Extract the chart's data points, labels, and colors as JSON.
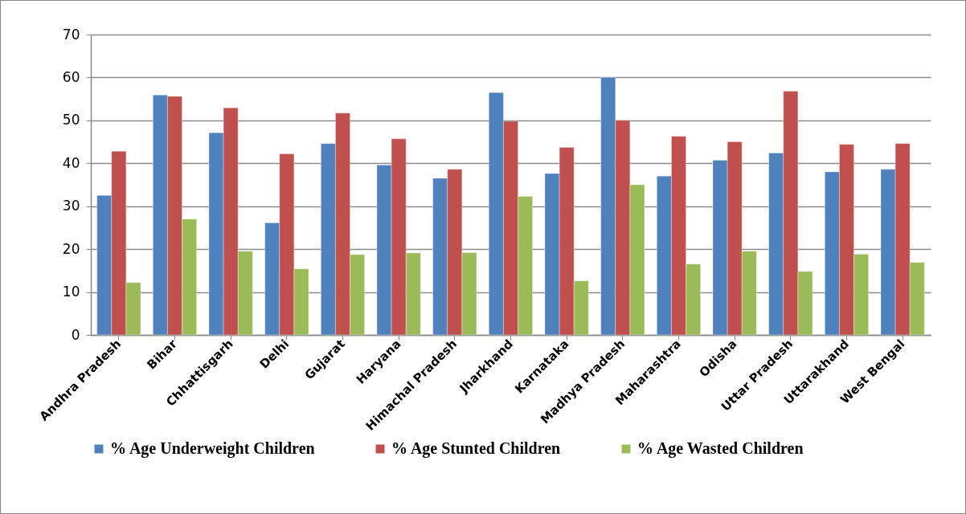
{
  "chart_data": {
    "type": "bar",
    "categories": [
      "Andhra Pradesh",
      "Bihar",
      "Chhattisgarh",
      "Delhi",
      "Gujarat",
      "Haryana",
      "Himachal Pradesh",
      "Jharkhand",
      "Karnataka",
      "Madhya Pradesh",
      "Maharashtra",
      "Odisha",
      "Uttar Pradesh",
      "Uttarakhand",
      "West Bengal"
    ],
    "series": [
      {
        "name": "% Age Underweight Children",
        "color": "#4f81bd",
        "values": [
          32.5,
          55.9,
          47.1,
          26.1,
          44.6,
          39.6,
          36.5,
          56.5,
          37.6,
          60.0,
          37.0,
          40.7,
          42.4,
          38.0,
          38.6
        ]
      },
      {
        "name": "% Age Stunted Children",
        "color": "#c0504d",
        "values": [
          42.8,
          55.6,
          52.9,
          42.2,
          51.7,
          45.7,
          38.6,
          49.8,
          43.7,
          50.0,
          46.3,
          45.0,
          56.8,
          44.4,
          44.6
        ]
      },
      {
        "name": "% Age Wasted Children",
        "color": "#9bbb59",
        "values": [
          12.2,
          27.0,
          19.5,
          15.4,
          18.7,
          19.1,
          19.2,
          32.3,
          12.6,
          35.0,
          16.5,
          19.5,
          14.8,
          18.8,
          16.9
        ]
      }
    ],
    "ylim": [
      0,
      70
    ],
    "yticks": [
      0,
      10,
      20,
      30,
      40,
      50,
      60,
      70
    ],
    "grid": "y",
    "legend": "bottom"
  }
}
